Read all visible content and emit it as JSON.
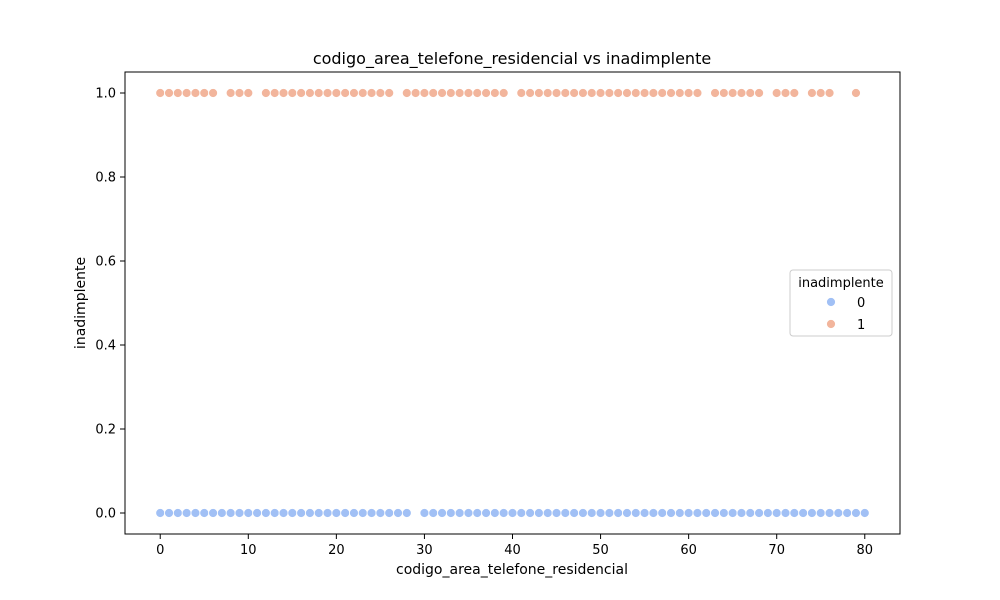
{
  "chart_data": {
    "type": "scatter",
    "title": "codigo_area_telefone_residencial vs inadimplente",
    "xlabel": "codigo_area_telefone_residencial",
    "ylabel": "inadimplente",
    "xlim": [
      -4,
      84
    ],
    "ylim": [
      -0.05,
      1.05
    ],
    "xticks": [
      0,
      10,
      20,
      30,
      40,
      50,
      60,
      70,
      80
    ],
    "xtick_labels": [
      "0",
      "10",
      "20",
      "30",
      "40",
      "50",
      "60",
      "70",
      "80"
    ],
    "yticks": [
      0.0,
      0.2,
      0.4,
      0.6,
      0.8,
      1.0
    ],
    "ytick_labels": [
      "0.0",
      "0.2",
      "0.4",
      "0.6",
      "0.8",
      "1.0"
    ],
    "grid": false,
    "legend": {
      "title": "inadimplente",
      "placement": "center-right",
      "entries": [
        "0",
        "1"
      ]
    },
    "series": [
      {
        "name": "0",
        "color": "#a1c0f5",
        "y": 0,
        "x": [
          0,
          1,
          2,
          3,
          4,
          5,
          6,
          7,
          8,
          9,
          10,
          11,
          12,
          13,
          14,
          15,
          16,
          17,
          18,
          19,
          20,
          21,
          22,
          23,
          24,
          25,
          26,
          27,
          28,
          30,
          31,
          32,
          33,
          34,
          35,
          36,
          37,
          38,
          39,
          40,
          41,
          42,
          43,
          44,
          45,
          46,
          47,
          48,
          49,
          50,
          51,
          52,
          53,
          54,
          55,
          56,
          57,
          58,
          59,
          60,
          61,
          62,
          63,
          64,
          65,
          66,
          67,
          68,
          69,
          70,
          71,
          72,
          73,
          74,
          75,
          76,
          77,
          78,
          79,
          80
        ]
      },
      {
        "name": "1",
        "color": "#f2b59c",
        "y": 1,
        "x": [
          0,
          1,
          2,
          3,
          4,
          5,
          6,
          8,
          9,
          10,
          12,
          13,
          14,
          15,
          16,
          17,
          18,
          19,
          20,
          21,
          22,
          23,
          24,
          25,
          26,
          28,
          29,
          30,
          31,
          32,
          33,
          34,
          35,
          36,
          37,
          38,
          39,
          41,
          42,
          43,
          44,
          45,
          46,
          47,
          48,
          49,
          50,
          51,
          52,
          53,
          54,
          55,
          56,
          57,
          58,
          59,
          60,
          61,
          63,
          64,
          65,
          66,
          67,
          68,
          70,
          71,
          72,
          74,
          75,
          76,
          79
        ]
      }
    ]
  }
}
